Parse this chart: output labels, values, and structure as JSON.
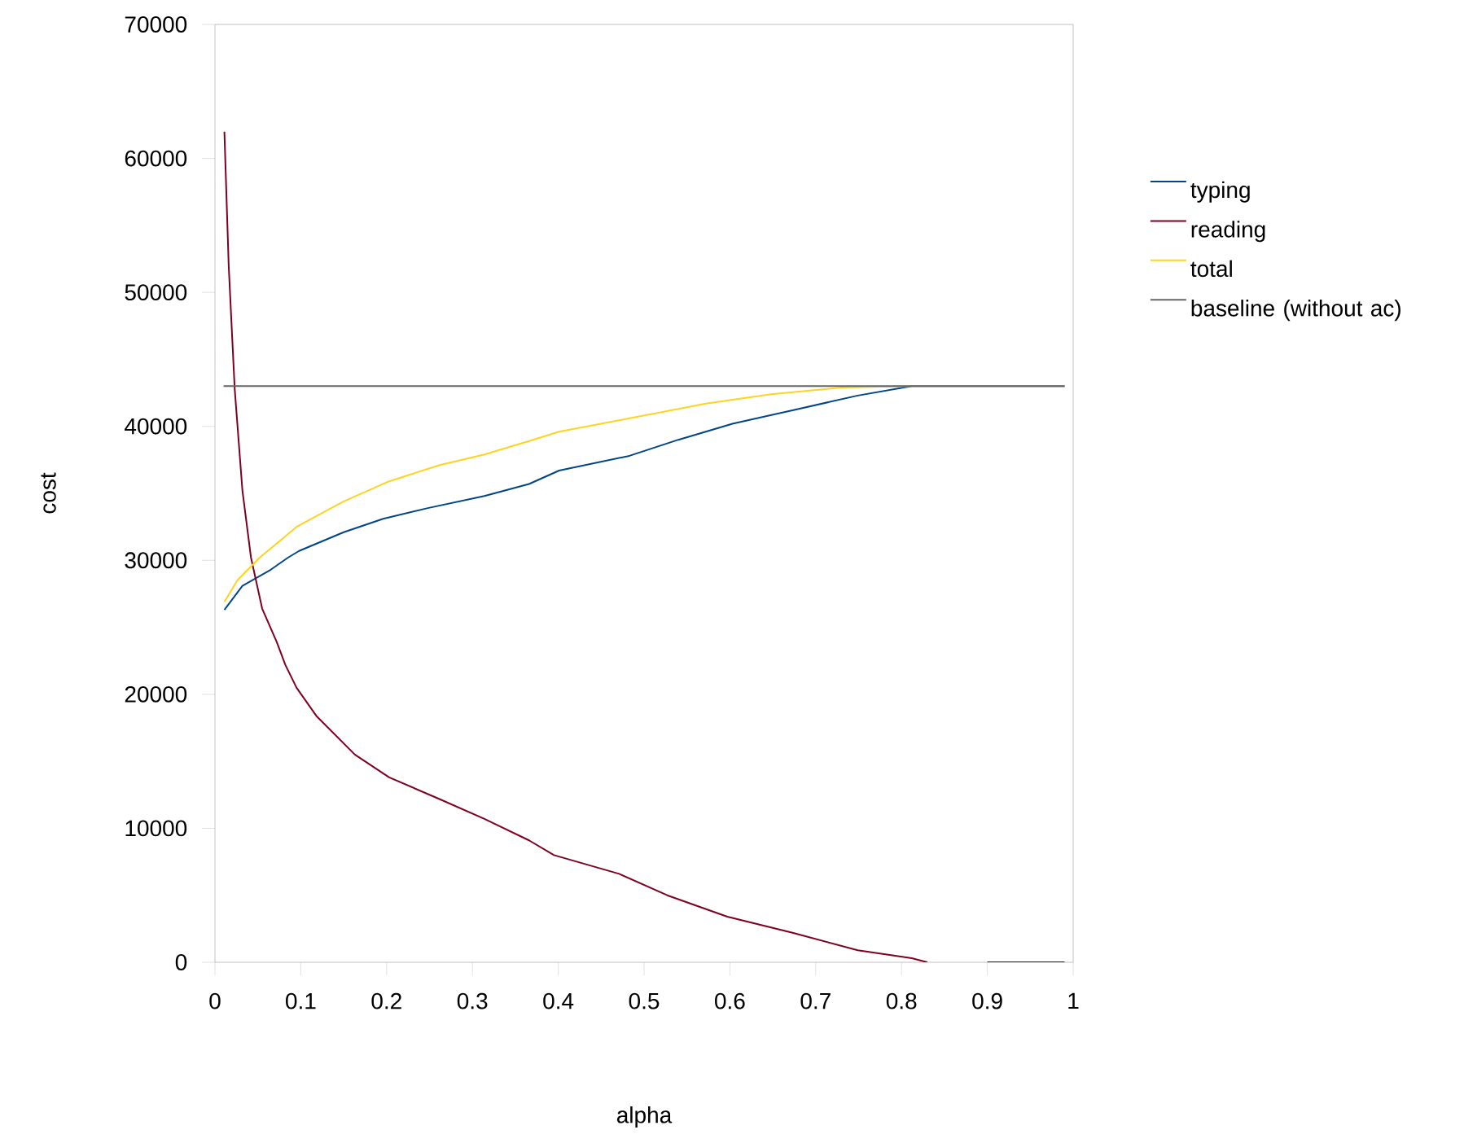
{
  "chart_data": {
    "type": "line",
    "xlabel": "alpha",
    "ylabel": "cost",
    "xlim": [
      0,
      1
    ],
    "ylim": [
      0,
      70000
    ],
    "xticks": [
      0,
      0.1,
      0.2,
      0.3,
      0.4,
      0.5,
      0.6,
      0.7,
      0.8,
      0.9,
      1
    ],
    "yticks": [
      0,
      10000,
      20000,
      30000,
      40000,
      50000,
      60000,
      70000
    ],
    "legend": "right",
    "series": [
      {
        "name": "typing",
        "color": "#004586",
        "x": [
          0.011,
          0.032,
          0.065,
          0.085,
          0.098,
          0.15,
          0.196,
          0.248,
          0.314,
          0.366,
          0.401,
          0.483,
          0.54,
          0.603,
          0.673,
          0.749,
          0.812,
          0.86,
          0.99
        ],
        "values": [
          26300,
          28100,
          29300,
          30200,
          30700,
          32100,
          33100,
          33900,
          34800,
          35700,
          36700,
          37800,
          39000,
          40200,
          41200,
          42300,
          43000,
          43000,
          43000
        ]
      },
      {
        "name": "reading",
        "color": "#7e0021",
        "x": [
          0.011,
          0.016,
          0.023,
          0.032,
          0.042,
          0.055,
          0.072,
          0.082,
          0.095,
          0.118,
          0.163,
          0.203,
          0.261,
          0.314,
          0.366,
          0.395,
          0.471,
          0.527,
          0.597,
          0.673,
          0.749,
          0.812,
          0.83,
          0.86,
          0.9,
          0.99
        ],
        "values": [
          62000,
          52000,
          42800,
          35200,
          30200,
          26400,
          23900,
          22200,
          20500,
          18400,
          15500,
          13800,
          12200,
          10700,
          9100,
          8000,
          6600,
          5000,
          3400,
          2200,
          900,
          300,
          0,
          null,
          0,
          0
        ]
      },
      {
        "name": "total",
        "color": "#ffd320",
        "x": [
          0.011,
          0.026,
          0.052,
          0.082,
          0.095,
          0.15,
          0.203,
          0.261,
          0.314,
          0.366,
          0.401,
          0.483,
          0.572,
          0.648,
          0.73,
          0.812,
          0.99
        ],
        "values": [
          26900,
          28500,
          30200,
          31800,
          32500,
          34400,
          35900,
          37100,
          37900,
          38900,
          39600,
          40600,
          41700,
          42400,
          42900,
          43000,
          43000
        ]
      },
      {
        "name": "baseline (without ac)",
        "color": "#666666",
        "x": [
          0.01,
          0.99
        ],
        "values": [
          43000,
          43000
        ]
      }
    ]
  }
}
